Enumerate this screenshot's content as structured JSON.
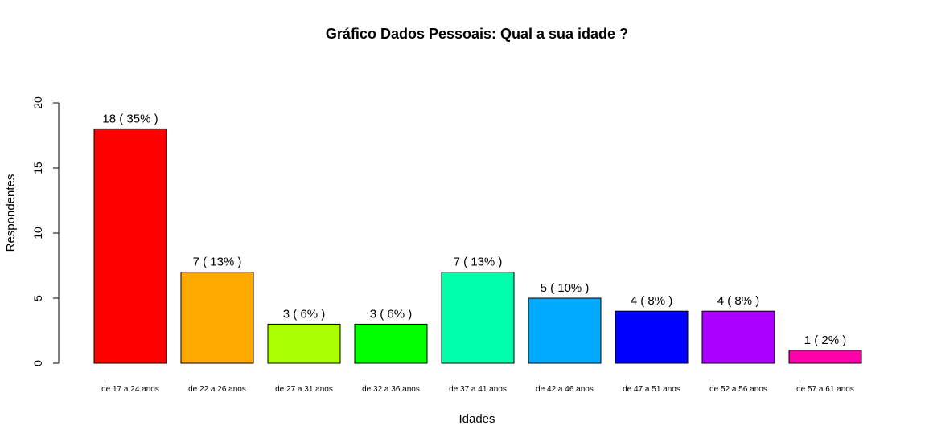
{
  "chart_data": {
    "type": "bar",
    "title": "Gráfico Dados Pessoais: Qual a sua idade ?",
    "xlabel": "Idades",
    "ylabel": "Respondentes",
    "ylim": [
      0,
      20
    ],
    "yticks": [
      "0",
      "5",
      "10",
      "15",
      "20"
    ],
    "categories": [
      "de 17 a 24 anos",
      "de 22 a 26 anos",
      "de 27 a 31 anos",
      "de 32 a 36 anos",
      "de 37 a 41 anos",
      "de 42 a 46 anos",
      "de 47 a 51 anos",
      "de 52 a 56 anos",
      "de 57 a 61 anos"
    ],
    "values": [
      18,
      7,
      3,
      3,
      7,
      5,
      4,
      4,
      1
    ],
    "data_labels": [
      "18  ( 35% )",
      "7  ( 13% )",
      "3  ( 6% )",
      "3  ( 6% )",
      "7  ( 13% )",
      "5  ( 10% )",
      "4  ( 8% )",
      "4  ( 8% )",
      "1  ( 2% )"
    ],
    "colors": [
      "#ff0000",
      "#ffaa00",
      "#aaff00",
      "#00ff00",
      "#00ffaa",
      "#00aaff",
      "#0000ff",
      "#aa00ff",
      "#ff00aa"
    ],
    "grid": false
  }
}
